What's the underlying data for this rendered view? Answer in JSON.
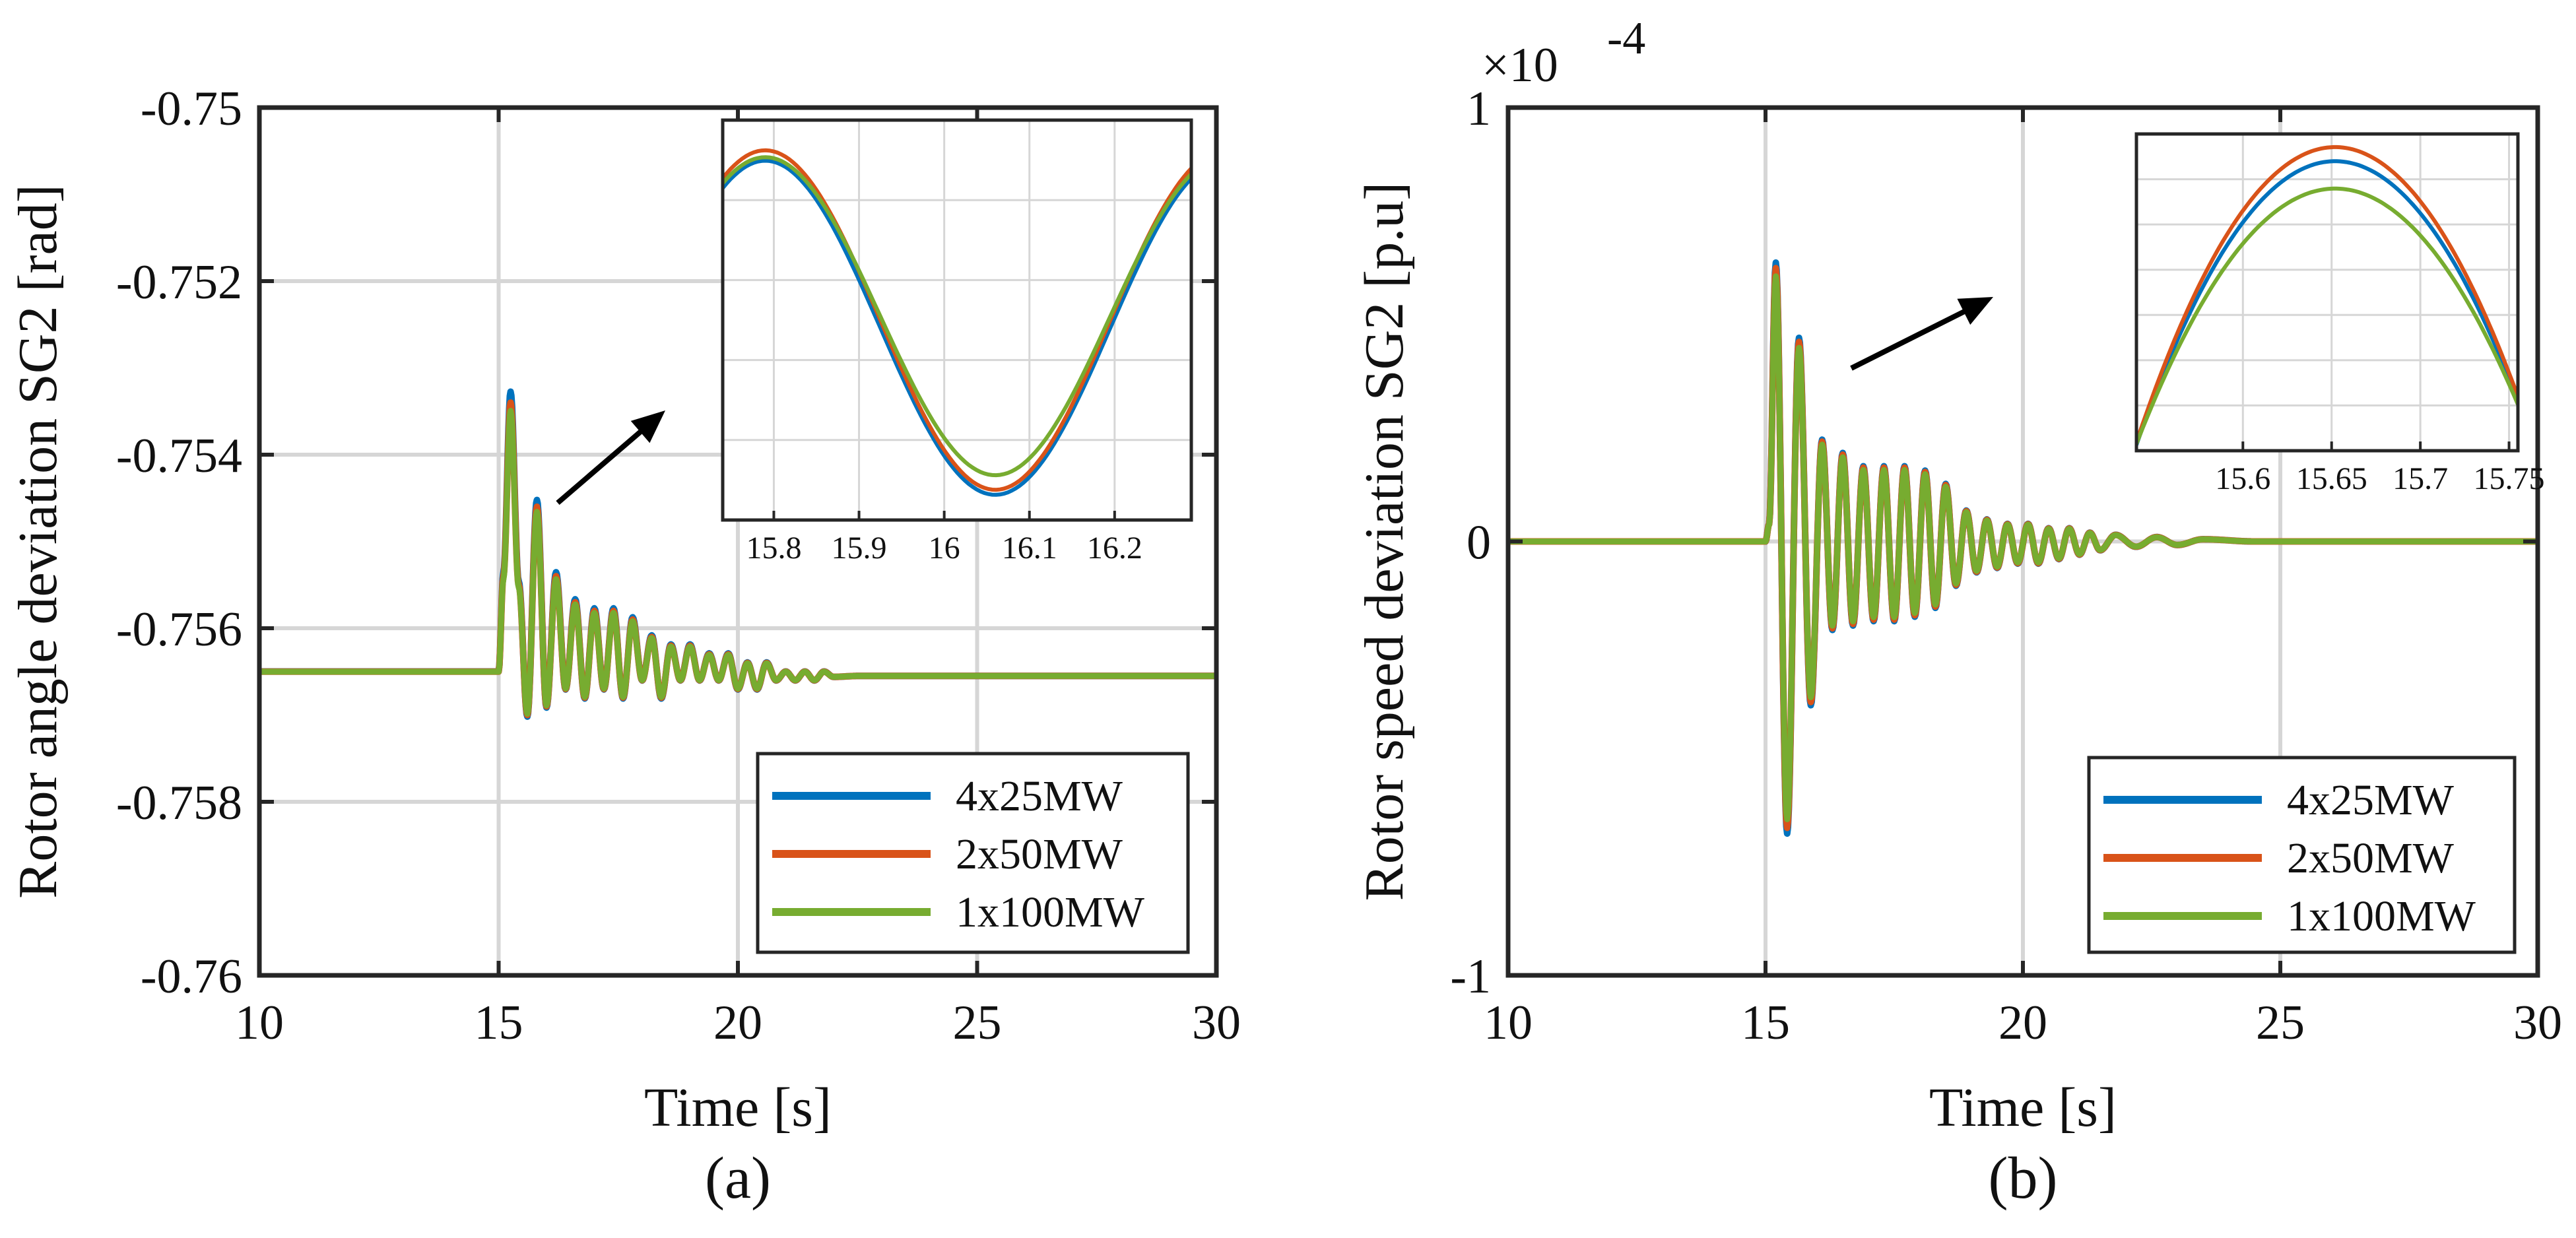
{
  "colors": {
    "series": [
      "#0072BD",
      "#D95319",
      "#77AC30"
    ],
    "grid": "#d6d6d6",
    "axis": "#262626"
  },
  "chart_data": [
    {
      "type": "line",
      "caption": "(a)",
      "xlabel": "Time [s]",
      "ylabel": "Rotor angle deviation SG2 [rad]",
      "xlim": [
        10,
        30
      ],
      "ylim": [
        -0.76,
        -0.75
      ],
      "xticks": [
        10,
        15,
        20,
        25,
        30
      ],
      "xtick_labels": [
        "10",
        "15",
        "20",
        "25",
        "30"
      ],
      "yticks": [
        -0.76,
        -0.758,
        -0.756,
        -0.754,
        -0.752,
        -0.75
      ],
      "ytick_labels": [
        "-0.76",
        "-0.758",
        "-0.756",
        "-0.754",
        "-0.752",
        "-0.75"
      ],
      "grid": true,
      "legend_position": "bottom-right",
      "event_time": 15.0,
      "steady_value": -0.75655,
      "pre_event_value": -0.7565,
      "series": [
        {
          "name": "4x25MW",
          "scale": 1.04
        },
        {
          "name": "2x50MW",
          "scale": 1.0
        },
        {
          "name": "1x100MW",
          "scale": 0.97
        }
      ],
      "trace": {
        "t": [
          15.0,
          15.1,
          15.25,
          15.42,
          15.6,
          15.8,
          16.0,
          16.2,
          16.4,
          16.6,
          16.8,
          17.0,
          17.2,
          17.4,
          17.6,
          17.8,
          18.0,
          18.2,
          18.4,
          18.6,
          18.8,
          19.0,
          19.2,
          19.4,
          19.6,
          19.8,
          20.0,
          20.2,
          20.4,
          20.6,
          20.8,
          21.0,
          21.2,
          21.4,
          21.6,
          21.8,
          22.0,
          22.5,
          30.0
        ],
        "y": [
          -0.7565,
          -0.7554,
          -0.7534,
          -0.7555,
          -0.757,
          -0.7546,
          -0.7569,
          -0.7554,
          -0.7567,
          -0.7557,
          -0.7568,
          -0.7558,
          -0.7567,
          -0.7558,
          -0.7568,
          -0.7559,
          -0.7566,
          -0.7561,
          -0.7568,
          -0.7562,
          -0.7566,
          -0.7562,
          -0.7566,
          -0.7563,
          -0.7566,
          -0.7563,
          -0.7567,
          -0.7564,
          -0.7567,
          -0.7564,
          -0.7566,
          -0.7565,
          -0.7566,
          -0.7565,
          -0.7566,
          -0.7565,
          -0.75656,
          -0.75655,
          -0.75655
        ]
      },
      "inset": {
        "position": "top-right",
        "xlim": [
          15.74,
          16.29
        ],
        "xticks": [
          15.8,
          15.9,
          16.0,
          16.1,
          16.2
        ],
        "xtick_labels": [
          "15.8",
          "15.9",
          "16",
          "16.1",
          "16.2"
        ]
      }
    },
    {
      "type": "line",
      "caption": "(b)",
      "xlabel": "Time [s]",
      "ylabel": "Rotor speed deviation SG2 [p.u]",
      "y_multiplier": "×10",
      "y_exponent": "-4",
      "xlim": [
        10,
        30
      ],
      "ylim": [
        -1,
        1
      ],
      "xticks": [
        10,
        15,
        20,
        25,
        30
      ],
      "xtick_labels": [
        "10",
        "15",
        "20",
        "25",
        "30"
      ],
      "yticks": [
        -1,
        0,
        1
      ],
      "ytick_labels": [
        "-1",
        "0",
        "1"
      ],
      "grid": true,
      "legend_position": "bottom-right",
      "event_time": 15.0,
      "series": [
        {
          "name": "4x25MW",
          "scale": 1.02
        },
        {
          "name": "2x50MW",
          "scale": 1.0
        },
        {
          "name": "1x100MW",
          "scale": 0.97
        }
      ],
      "trace": {
        "t": [
          15.0,
          15.07,
          15.2,
          15.42,
          15.65,
          15.88,
          16.1,
          16.3,
          16.5,
          16.7,
          16.9,
          17.1,
          17.3,
          17.5,
          17.7,
          17.9,
          18.1,
          18.3,
          18.5,
          18.7,
          18.9,
          19.1,
          19.3,
          19.5,
          19.7,
          19.9,
          20.1,
          20.3,
          20.5,
          20.7,
          20.9,
          21.1,
          21.3,
          21.5,
          21.8,
          22.2,
          22.6,
          23.0,
          23.5,
          24.5,
          30.0
        ],
        "y": [
          0,
          0.04,
          0.63,
          -0.66,
          0.46,
          -0.37,
          0.23,
          -0.2,
          0.2,
          -0.19,
          0.17,
          -0.18,
          0.17,
          -0.18,
          0.17,
          -0.17,
          0.16,
          -0.15,
          0.13,
          -0.1,
          0.07,
          -0.07,
          0.05,
          -0.06,
          0.04,
          -0.05,
          0.04,
          -0.05,
          0.03,
          -0.04,
          0.03,
          -0.03,
          0.02,
          -0.02,
          0.015,
          -0.012,
          0.01,
          -0.008,
          0.005,
          0.0,
          0.0
        ]
      },
      "inset": {
        "position": "top-right",
        "xlim": [
          15.54,
          15.755
        ],
        "xticks": [
          15.6,
          15.65,
          15.7,
          15.75
        ],
        "xtick_labels": [
          "15.6",
          "15.65",
          "15.7",
          "15.75"
        ]
      }
    }
  ]
}
